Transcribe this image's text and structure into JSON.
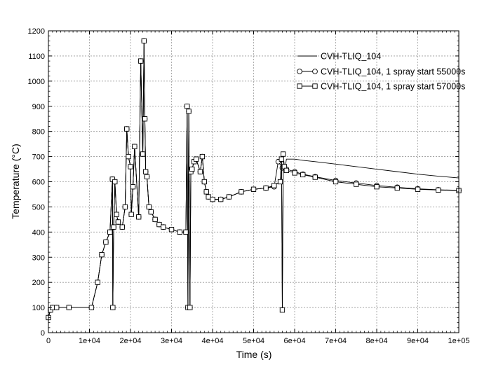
{
  "chart_data": {
    "type": "line",
    "title": "",
    "xlabel": "Time (s)",
    "ylabel": "Temperature (°C)",
    "xlim": [
      0,
      100000
    ],
    "ylim": [
      0,
      1200
    ],
    "x_tick_labels": [
      "0",
      "1e+04",
      "2e+04",
      "3e+04",
      "4e+04",
      "5e+04",
      "6e+04",
      "7e+04",
      "8e+04",
      "9e+04",
      "1e+05"
    ],
    "x_tick_values": [
      0,
      10000,
      20000,
      30000,
      40000,
      50000,
      60000,
      70000,
      80000,
      90000,
      100000
    ],
    "y_tick_labels": [
      "0",
      "100",
      "200",
      "300",
      "400",
      "500",
      "600",
      "700",
      "800",
      "900",
      "1000",
      "1100",
      "1200"
    ],
    "y_tick_values": [
      0,
      100,
      200,
      300,
      400,
      500,
      600,
      700,
      800,
      900,
      1000,
      1100,
      1200
    ],
    "grid": true,
    "legend_position": "top-right",
    "series": [
      {
        "name": "CVH-TLIQ_104",
        "marker": "none",
        "x": [
          0,
          500,
          1000,
          2000,
          5000,
          10500,
          12000,
          13000,
          14000,
          15000,
          15600,
          15700,
          15900,
          16200,
          16600,
          17000,
          18000,
          18700,
          19100,
          19500,
          20000,
          20200,
          20600,
          21000,
          22000,
          22500,
          23000,
          23300,
          23500,
          23700,
          24000,
          24500,
          25000,
          26000,
          27000,
          28000,
          30000,
          32000,
          33500,
          33800,
          34000,
          34200,
          34500,
          34700,
          35000,
          35500,
          36000,
          37000,
          37500,
          38000,
          38500,
          39000,
          40000,
          42000,
          44000,
          47000,
          50000,
          53000,
          55000,
          56500,
          56800,
          57000,
          57200,
          57500,
          58000,
          60000,
          62000,
          65000,
          70000,
          75000,
          80000,
          85000,
          90000,
          95000,
          100000
        ],
        "y": [
          60,
          90,
          100,
          100,
          100,
          100,
          200,
          310,
          360,
          400,
          610,
          100,
          420,
          600,
          470,
          440,
          420,
          500,
          810,
          700,
          660,
          470,
          580,
          740,
          460,
          1080,
          710,
          1160,
          850,
          640,
          620,
          500,
          480,
          450,
          430,
          420,
          410,
          400,
          400,
          900,
          100,
          880,
          100,
          640,
          650,
          680,
          690,
          640,
          700,
          600,
          560,
          540,
          530,
          530,
          540,
          560,
          570,
          575,
          585,
          600,
          690,
          90,
          670,
          640,
          690,
          690,
          685,
          680,
          670,
          660,
          650,
          640,
          630,
          622,
          615
        ]
      },
      {
        "name": "CVH-TLIQ_104, 1 spray start 55000s",
        "marker": "circle",
        "x": [
          0,
          500,
          1000,
          2000,
          5000,
          10500,
          12000,
          13000,
          14000,
          15000,
          15600,
          15700,
          15900,
          16200,
          16600,
          17000,
          18000,
          18700,
          19100,
          19500,
          20000,
          20200,
          20600,
          21000,
          22000,
          22500,
          23000,
          23300,
          23500,
          23700,
          24000,
          24500,
          25000,
          26000,
          27000,
          28000,
          30000,
          32000,
          33500,
          33800,
          34000,
          34200,
          34500,
          34700,
          35000,
          35500,
          36000,
          37000,
          37500,
          38000,
          38500,
          39000,
          40000,
          42000,
          44000,
          47000,
          50000,
          53000,
          55000,
          56000,
          57000,
          58000,
          60000,
          62000,
          65000,
          70000,
          75000,
          80000,
          85000,
          90000,
          95000,
          100000
        ],
        "y": [
          60,
          90,
          100,
          100,
          100,
          100,
          200,
          310,
          360,
          400,
          610,
          100,
          420,
          600,
          470,
          440,
          420,
          500,
          810,
          700,
          660,
          470,
          580,
          740,
          460,
          1080,
          710,
          1160,
          850,
          640,
          620,
          500,
          480,
          450,
          430,
          420,
          410,
          400,
          400,
          900,
          100,
          880,
          100,
          640,
          650,
          680,
          690,
          640,
          700,
          600,
          560,
          540,
          530,
          530,
          540,
          560,
          570,
          575,
          580,
          680,
          655,
          650,
          640,
          630,
          620,
          605,
          595,
          585,
          578,
          572,
          568,
          566
        ]
      },
      {
        "name": "CVH-TLIQ_104, 1 spray start 57000s",
        "marker": "square",
        "x": [
          0,
          500,
          1000,
          2000,
          5000,
          10500,
          12000,
          13000,
          14000,
          15000,
          15600,
          15700,
          15900,
          16200,
          16600,
          17000,
          18000,
          18700,
          19100,
          19500,
          20000,
          20200,
          20600,
          21000,
          22000,
          22500,
          23000,
          23300,
          23500,
          23700,
          24000,
          24500,
          25000,
          26000,
          27000,
          28000,
          30000,
          32000,
          33500,
          33800,
          34000,
          34200,
          34500,
          34700,
          35000,
          35500,
          36000,
          37000,
          37500,
          38000,
          38500,
          39000,
          40000,
          42000,
          44000,
          47000,
          50000,
          53000,
          55000,
          56500,
          56800,
          57000,
          57200,
          57500,
          58000,
          60000,
          62000,
          65000,
          70000,
          75000,
          80000,
          85000,
          90000,
          95000,
          100000
        ],
        "y": [
          60,
          90,
          100,
          100,
          100,
          100,
          200,
          310,
          360,
          400,
          610,
          100,
          420,
          600,
          470,
          440,
          420,
          500,
          810,
          700,
          660,
          470,
          580,
          740,
          460,
          1080,
          710,
          1160,
          850,
          640,
          620,
          500,
          480,
          450,
          430,
          420,
          410,
          400,
          400,
          900,
          100,
          880,
          100,
          640,
          650,
          680,
          690,
          640,
          700,
          600,
          560,
          540,
          530,
          530,
          540,
          560,
          570,
          575,
          585,
          600,
          690,
          90,
          710,
          660,
          645,
          635,
          628,
          618,
          600,
          590,
          580,
          575,
          570,
          567,
          565
        ]
      }
    ]
  },
  "colors": {
    "line": "#000000",
    "grid": "#9a9a9a",
    "background": "#ffffff"
  }
}
